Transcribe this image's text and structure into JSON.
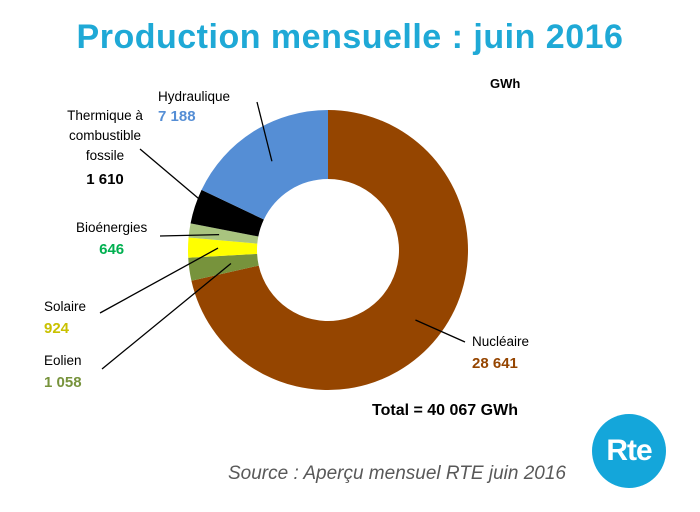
{
  "title": "Production mensuelle : juin 2016",
  "unit": "GWh",
  "total": "Total = 40 067 GWh",
  "source": "Source : Aperçu mensuel RTE juin 2016",
  "logo_text": "Rte",
  "chart_data": {
    "type": "pie",
    "subtype": "donut",
    "title": "Production mensuelle : juin 2016",
    "unit": "GWh",
    "slices": [
      {
        "name": "Nucléaire",
        "value": 28641,
        "display": "28 641",
        "color": "#954500"
      },
      {
        "name": "Eolien",
        "value": 1058,
        "display": "1 058",
        "color": "#77933c"
      },
      {
        "name": "Solaire",
        "value": 924,
        "display": "924",
        "color": "#ffff00"
      },
      {
        "name": "Bioénergies",
        "value": 646,
        "display": "646",
        "color": "#a9c47f"
      },
      {
        "name": "Thermique à combustible fossile",
        "value": 1610,
        "display": "1 610",
        "color": "#000000"
      },
      {
        "name": "Hydraulique",
        "value": 7188,
        "display": "7 188",
        "color": "#558ed5"
      }
    ],
    "total": "Total = 40 067 GWh",
    "legend": "none"
  },
  "colors": {
    "title": "#1fa9d6",
    "nucleaire_label": "#954500",
    "eolien_label": "#77933c",
    "solaire_label": "#c9c100",
    "bio_label": "#00b050",
    "thermique_label": "#000000",
    "hydraulique_label": "#558ed5",
    "logo": "#14a6da"
  }
}
